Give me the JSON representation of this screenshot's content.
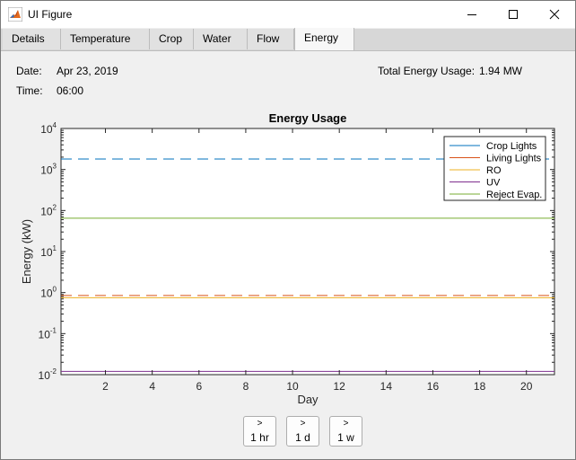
{
  "window": {
    "title": "UI Figure",
    "controls": {
      "minimize": "minimize-icon",
      "maximize": "maximize-icon",
      "close": "close-icon"
    }
  },
  "tabs": [
    {
      "label": "Details"
    },
    {
      "label": "Temperature"
    },
    {
      "label": "Crop"
    },
    {
      "label": "Water"
    },
    {
      "label": "Flow"
    },
    {
      "label": "Energy",
      "active": true
    }
  ],
  "info": {
    "date_label": "Date:",
    "date_value": "Apr 23, 2019",
    "time_label": "Time:",
    "time_value": "06:00",
    "total_label": "Total Energy Usage:",
    "total_value": "1.94 MW"
  },
  "chart_data": {
    "type": "line",
    "title": "Energy Usage",
    "xlabel": "Day",
    "ylabel": "Energy (kW)",
    "xlim": [
      0.1,
      21.2
    ],
    "ylim": [
      0.01,
      10000
    ],
    "yscale": "log",
    "xticks": [
      2,
      4,
      6,
      8,
      10,
      12,
      14,
      16,
      18,
      20
    ],
    "yticks": [
      {
        "value": 0.01,
        "base": "10",
        "exp": "-2"
      },
      {
        "value": 0.1,
        "base": "10",
        "exp": "-1"
      },
      {
        "value": 1,
        "base": "10",
        "exp": "0"
      },
      {
        "value": 10,
        "base": "10",
        "exp": "1"
      },
      {
        "value": 100,
        "base": "10",
        "exp": "2"
      },
      {
        "value": 1000,
        "base": "10",
        "exp": "3"
      },
      {
        "value": 10000,
        "base": "10",
        "exp": "4"
      }
    ],
    "grid": false,
    "legend_position": "top-right",
    "series": [
      {
        "name": "Crop Lights",
        "color": "#0072bd",
        "dash": true,
        "segments": [
          {
            "x": [
              0.1,
              21.2
            ],
            "y": [
              1800,
              1800
            ]
          }
        ]
      },
      {
        "name": "Living Lights",
        "color": "#d95319",
        "dash": true,
        "segments": [
          {
            "x": [
              0.1,
              21.2
            ],
            "y": [
              0.85,
              0.85
            ]
          }
        ]
      },
      {
        "name": "RO",
        "color": "#edb120",
        "dash": false,
        "segments": [
          {
            "x": [
              0.1,
              21.2
            ],
            "y": [
              0.75,
              0.75
            ]
          }
        ]
      },
      {
        "name": "UV",
        "color": "#7e2f8e",
        "dash": false,
        "segments": [
          {
            "x": [
              0.1,
              21.2
            ],
            "y": [
              0.012,
              0.012
            ]
          }
        ]
      },
      {
        "name": "Reject Evap.",
        "color": "#77ac30",
        "dash": false,
        "segments": [
          {
            "x": [
              0.1,
              21.2
            ],
            "y": [
              65,
              65
            ]
          }
        ]
      }
    ]
  },
  "buttons": [
    {
      "arrow": ">",
      "label": "1 hr"
    },
    {
      "arrow": ">",
      "label": "1 d"
    },
    {
      "arrow": ">",
      "label": "1 w"
    }
  ]
}
